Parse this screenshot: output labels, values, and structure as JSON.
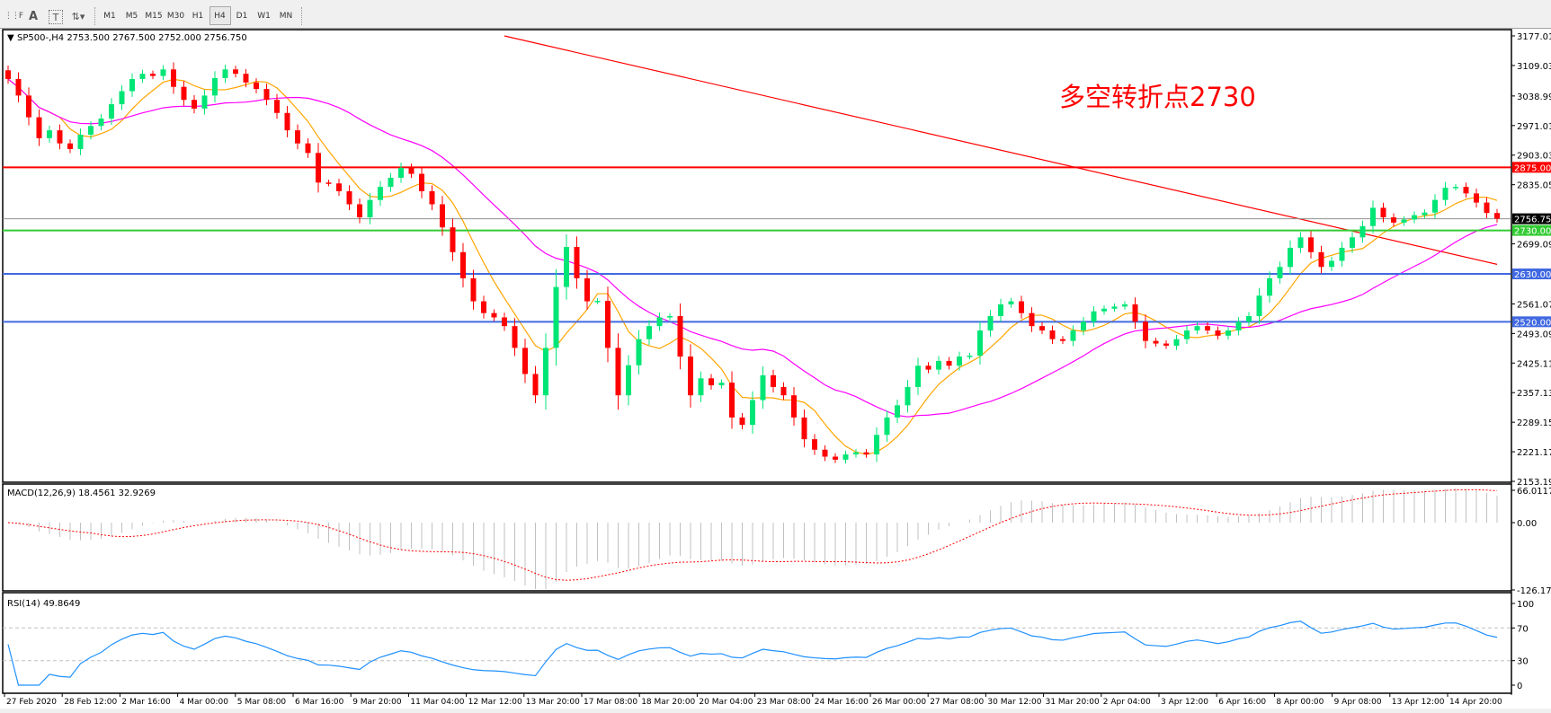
{
  "toolbar": {
    "icons": [
      "grid-fixed-icon",
      "text-icon",
      "text-label-icon",
      "arrows-icon"
    ],
    "timeframes": [
      "M1",
      "M5",
      "M15",
      "M30",
      "H1",
      "H4",
      "D1",
      "W1",
      "MN"
    ],
    "active_timeframe": "H4"
  },
  "chart": {
    "header": "SP500-,H4  2753.500 2767.500 2752.000 2756.750",
    "annotation": "多空转折点2730",
    "colors": {
      "bull": "#00e676",
      "bear": "#ff0000",
      "ma_fast": "#ffa500",
      "ma_mid": "#ff00ff",
      "ma_slow": "#ff0000",
      "rsi": "#1e90ff",
      "macd_signal": "#ff0000",
      "macd_hist": "#c0c0c0"
    }
  },
  "chart_data": {
    "type": "candlestick",
    "symbol": "SP500-",
    "timeframe": "H4",
    "ohlc_last": {
      "open": 2753.5,
      "high": 2767.5,
      "low": 2752.0,
      "close": 2756.75
    },
    "ylim": [
      2153.19,
      3177.01
    ],
    "y_ticks": [
      "3177.010",
      "3109.030",
      "3038.990",
      "2971.010",
      "2903.030",
      "2835.050",
      "2699.090",
      "2561.070",
      "2493.090",
      "2425.110",
      "2357.130",
      "2289.150",
      "2221.170",
      "2153.190"
    ],
    "x_ticks": [
      "27 Feb 2020",
      "28 Feb 12:00",
      "2 Mar 16:00",
      "4 Mar 00:00",
      "5 Mar 08:00",
      "6 Mar 16:00",
      "9 Mar 20:00",
      "11 Mar 04:00",
      "12 Mar 12:00",
      "13 Mar 20:00",
      "17 Mar 08:00",
      "18 Mar 20:00",
      "20 Mar 04:00",
      "23 Mar 08:00",
      "24 Mar 16:00",
      "26 Mar 00:00",
      "27 Mar 08:00",
      "30 Mar 12:00",
      "31 Mar 20:00",
      "2 Apr 04:00",
      "3 Apr 12:00",
      "6 Apr 16:00",
      "8 Apr 00:00",
      "9 Apr 08:00",
      "13 Apr 12:00",
      "14 Apr 20:00"
    ],
    "closes": [
      3078,
      3040,
      2990,
      2942,
      2960,
      2930,
      2917,
      2950,
      2970,
      2987,
      3020,
      3050,
      3078,
      3090,
      3085,
      3100,
      3060,
      3030,
      3010,
      3040,
      3080,
      3100,
      3090,
      3070,
      3055,
      3030,
      3000,
      2960,
      2930,
      2908,
      2840,
      2838,
      2820,
      2790,
      2760,
      2800,
      2830,
      2851,
      2874,
      2860,
      2820,
      2790,
      2737,
      2680,
      2620,
      2567,
      2540,
      2530,
      2510,
      2460,
      2400,
      2351,
      2460,
      2600,
      2692,
      2620,
      2567,
      2568,
      2460,
      2351,
      2420,
      2480,
      2510,
      2530,
      2533,
      2440,
      2351,
      2390,
      2374,
      2380,
      2300,
      2283,
      2340,
      2397,
      2370,
      2351,
      2300,
      2250,
      2226,
      2210,
      2203,
      2215,
      2220,
      2215,
      2260,
      2300,
      2328,
      2370,
      2419,
      2410,
      2430,
      2419,
      2440,
      2442,
      2500,
      2533,
      2560,
      2567,
      2540,
      2510,
      2500,
      2480,
      2476,
      2500,
      2520,
      2544,
      2550,
      2555,
      2560,
      2520,
      2476,
      2470,
      2465,
      2480,
      2500,
      2510,
      2500,
      2488,
      2500,
      2520,
      2533,
      2580,
      2620,
      2646,
      2690,
      2714,
      2680,
      2646,
      2660,
      2690,
      2714,
      2740,
      2782,
      2760,
      2748,
      2755,
      2765,
      2771,
      2800,
      2828,
      2830,
      2815,
      2794,
      2770,
      2757
    ],
    "ma_slow": {
      "start_price": 3177,
      "end_price": 2652
    },
    "levels": [
      {
        "price": 2875,
        "label": "2875.000",
        "color": "#ff0000"
      },
      {
        "price": 2730,
        "label": "2730.000",
        "color": "#33cc33"
      },
      {
        "price": 2630,
        "label": "2630.000",
        "color": "#4169e1"
      },
      {
        "price": 2520,
        "label": "2520.000",
        "color": "#4169e1"
      }
    ],
    "current_price": {
      "price": 2756.75,
      "label": "2756.750"
    },
    "macd": {
      "label": "MACD(12,26,9) 18.4561 32.9269",
      "ylim": [
        -126.173,
        66.0117
      ],
      "ticks": [
        "66.0117",
        "0.00",
        "-126.173"
      ]
    },
    "rsi": {
      "label": "RSI(14) 49.8649",
      "levels": [
        70,
        30
      ],
      "ticks": [
        "100",
        "70",
        "30",
        "0"
      ]
    }
  }
}
